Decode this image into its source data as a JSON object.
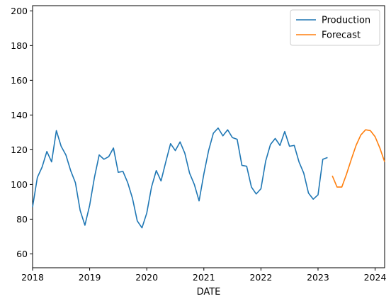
{
  "chart_data": {
    "type": "line",
    "xlabel": "DATE",
    "ylabel": "",
    "title": "",
    "x_tick_labels": [
      "2018",
      "2019",
      "2020",
      "2021",
      "2022",
      "2023",
      "2024"
    ],
    "y_ticks": [
      60,
      80,
      100,
      120,
      140,
      160,
      180,
      200
    ],
    "xlim": [
      "2018-01",
      "2024-03"
    ],
    "ylim": [
      52,
      203
    ],
    "grid": false,
    "legend": "top-right",
    "series": [
      {
        "name": "Production",
        "color": "#1f77b4",
        "points": [
          [
            "2018-01",
            87
          ],
          [
            "2018-02",
            104
          ],
          [
            "2018-03",
            110
          ],
          [
            "2018-04",
            119
          ],
          [
            "2018-05",
            113
          ],
          [
            "2018-06",
            131
          ],
          [
            "2018-07",
            122
          ],
          [
            "2018-08",
            117
          ],
          [
            "2018-09",
            108
          ],
          [
            "2018-10",
            101
          ],
          [
            "2018-11",
            85
          ],
          [
            "2018-12",
            76.5
          ],
          [
            "2019-01",
            88
          ],
          [
            "2019-02",
            104
          ],
          [
            "2019-03",
            117
          ],
          [
            "2019-04",
            114.5
          ],
          [
            "2019-05",
            116
          ],
          [
            "2019-06",
            121
          ],
          [
            "2019-07",
            107
          ],
          [
            "2019-08",
            107.5
          ],
          [
            "2019-09",
            101
          ],
          [
            "2019-10",
            92
          ],
          [
            "2019-11",
            79
          ],
          [
            "2019-12",
            75
          ],
          [
            "2020-01",
            83.5
          ],
          [
            "2020-02",
            98.5
          ],
          [
            "2020-03",
            108
          ],
          [
            "2020-04",
            102
          ],
          [
            "2020-05",
            113
          ],
          [
            "2020-06",
            123.5
          ],
          [
            "2020-07",
            119.5
          ],
          [
            "2020-08",
            124.5
          ],
          [
            "2020-09",
            118
          ],
          [
            "2020-10",
            106.5
          ],
          [
            "2020-11",
            100
          ],
          [
            "2020-12",
            90.5
          ],
          [
            "2021-01",
            106
          ],
          [
            "2021-02",
            119.5
          ],
          [
            "2021-03",
            129.5
          ],
          [
            "2021-04",
            132.5
          ],
          [
            "2021-05",
            128
          ],
          [
            "2021-06",
            131.5
          ],
          [
            "2021-07",
            127
          ],
          [
            "2021-08",
            126
          ],
          [
            "2021-09",
            111
          ],
          [
            "2021-10",
            110.5
          ],
          [
            "2021-11",
            98.5
          ],
          [
            "2021-12",
            94.5
          ],
          [
            "2022-01",
            97.5
          ],
          [
            "2022-02",
            113.5
          ],
          [
            "2022-03",
            123
          ],
          [
            "2022-04",
            126.5
          ],
          [
            "2022-05",
            122.5
          ],
          [
            "2022-06",
            130.5
          ],
          [
            "2022-07",
            122
          ],
          [
            "2022-08",
            122.5
          ],
          [
            "2022-09",
            113
          ],
          [
            "2022-10",
            106.5
          ],
          [
            "2022-11",
            95
          ],
          [
            "2022-12",
            91.5
          ],
          [
            "2023-01",
            94
          ],
          [
            "2023-02",
            114.5
          ],
          [
            "2023-03",
            115.5
          ]
        ]
      },
      {
        "name": "Forecast",
        "color": "#ff7f0e",
        "points": [
          [
            "2023-04",
            105
          ],
          [
            "2023-05",
            98.5
          ],
          [
            "2023-06",
            98.5
          ],
          [
            "2023-07",
            106
          ],
          [
            "2023-08",
            114.5
          ],
          [
            "2023-09",
            122.5
          ],
          [
            "2023-10",
            128.5
          ],
          [
            "2023-11",
            131.5
          ],
          [
            "2023-12",
            131
          ],
          [
            "2024-01",
            127.5
          ],
          [
            "2024-02",
            121
          ],
          [
            "2024-03",
            113
          ]
        ]
      }
    ]
  }
}
